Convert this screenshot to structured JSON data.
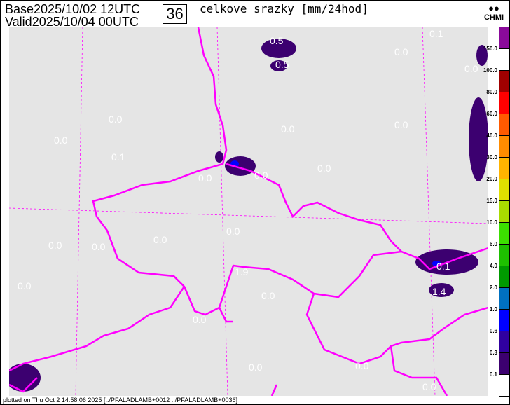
{
  "header": {
    "base_label": "Base",
    "base_value": "2025/10/02 12UTC",
    "valid_label": "Valid",
    "valid_value": "2025/10/04 00UTC",
    "lead_hour": "36",
    "title": "celkove srazky [mm/24hod]"
  },
  "logo": {
    "symbol": "●●",
    "text": "CHMI"
  },
  "legend": {
    "colors": [
      "#8a0a9a",
      "#ffffff",
      "#a00000",
      "#ff0000",
      "#ff5a00",
      "#ff8c00",
      "#ffb400",
      "#e0e000",
      "#a8dc00",
      "#3ce000",
      "#1ec000",
      "#009a00",
      "#0070c0",
      "#0000ff",
      "#3000a0",
      "#3c0070",
      "#ffffff"
    ],
    "labels": [
      "150.0",
      "100.0",
      "80.0",
      "60.0",
      "40.0",
      "30.0",
      "20.0",
      "15.0",
      "10.0",
      "6.0",
      "4.0",
      "2.0",
      "1.0",
      "0.6",
      "0.3",
      "0.1"
    ]
  },
  "map": {
    "background": "#e5e5e5",
    "border_color": "#ff00ff",
    "grid_color": "#ff00ff",
    "values": [
      "0.5",
      "0.5",
      "0.1",
      "0.0",
      "0.0",
      "0.0",
      "0.1",
      "0.0",
      "0.0",
      "0.0",
      "0.0",
      "0.0",
      "0.0",
      "0.0",
      "0.0",
      "0.0",
      "0.1",
      "1.4",
      "1.9",
      "0.0",
      "0.0",
      "0.0",
      "0.0",
      "0.0",
      "0.0",
      "0.0"
    ]
  },
  "footer": "plotted on Thu Oct  2 14:58:06 2025 [../PFALADLAMB+0012 ../PFALADLAMB+0036]"
}
